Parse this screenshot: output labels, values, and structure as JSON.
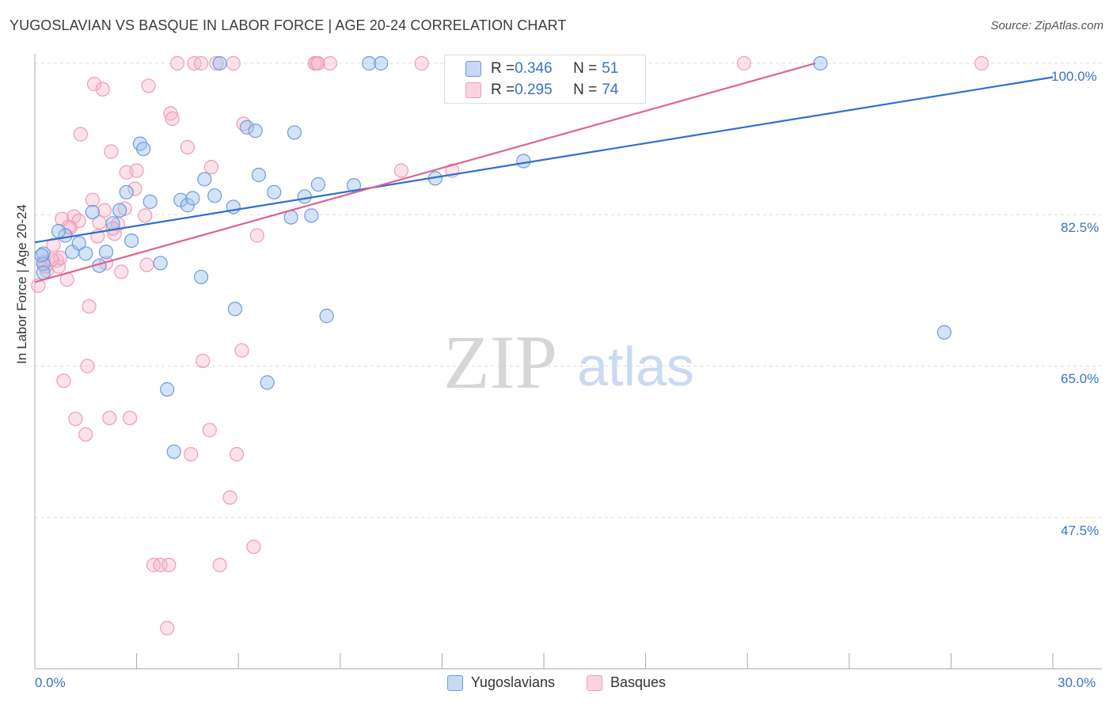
{
  "title": "YUGOSLAVIAN VS BASQUE IN LABOR FORCE | AGE 20-24 CORRELATION CHART",
  "source": "Source: ZipAtlas.com",
  "watermark": {
    "zip": "ZIP",
    "atlas": "atlas"
  },
  "stats": {
    "yugoslavians": {
      "r_label": "R = ",
      "r": "0.346",
      "n_label": "N = ",
      "n": "51",
      "color": "#6d9be0"
    },
    "basques": {
      "r_label": "R = ",
      "r": "0.295",
      "n_label": "N = ",
      "n": "74",
      "color": "#f09ab6"
    }
  },
  "chart_data": {
    "type": "scatter",
    "xlabel": "",
    "ylabel": "In Labor Force | Age 20-24",
    "xlim": [
      0,
      30
    ],
    "ylim": [
      30,
      100
    ],
    "x_tick_labels": [
      "0.0%",
      "30.0%"
    ],
    "y_ticks": [
      47.5,
      65.0,
      82.5,
      100.0
    ],
    "y_tick_labels": [
      "47.5%",
      "65.0%",
      "82.5%",
      "100.0%"
    ],
    "grid": true,
    "legend_placement": "bottom",
    "series": [
      {
        "name": "Yugoslavians",
        "color": "#6d9be0",
        "line_color": "#2f6fce",
        "trend": {
          "x0": 0.0,
          "y0": 79.3,
          "x1": 30.0,
          "y1": 98.4
        },
        "points": [
          [
            0.25,
            78.0
          ],
          [
            0.25,
            76.8
          ],
          [
            0.25,
            75.8
          ],
          [
            0.9,
            80.1
          ],
          [
            0.7,
            80.6
          ],
          [
            1.1,
            78.2
          ],
          [
            1.3,
            79.2
          ],
          [
            1.5,
            78.0
          ],
          [
            1.7,
            82.8
          ],
          [
            1.9,
            76.6
          ],
          [
            2.1,
            78.2
          ],
          [
            2.3,
            81.5
          ],
          [
            2.5,
            83.0
          ],
          [
            2.7,
            85.1
          ],
          [
            2.85,
            79.5
          ],
          [
            3.1,
            90.7
          ],
          [
            3.2,
            90.1
          ],
          [
            3.4,
            84.0
          ],
          [
            3.7,
            76.9
          ],
          [
            3.9,
            62.3
          ],
          [
            4.1,
            55.1
          ],
          [
            4.3,
            84.2
          ],
          [
            4.5,
            83.6
          ],
          [
            4.65,
            84.4
          ],
          [
            4.9,
            75.3
          ],
          [
            5.0,
            86.6
          ],
          [
            5.3,
            84.7
          ],
          [
            5.45,
            100.0
          ],
          [
            5.85,
            83.4
          ],
          [
            5.9,
            71.6
          ],
          [
            6.25,
            92.6
          ],
          [
            6.5,
            92.2
          ],
          [
            6.6,
            87.1
          ],
          [
            6.85,
            63.1
          ],
          [
            7.05,
            85.1
          ],
          [
            7.55,
            82.2
          ],
          [
            7.65,
            92.0
          ],
          [
            7.95,
            84.6
          ],
          [
            8.15,
            82.4
          ],
          [
            8.35,
            86.0
          ],
          [
            8.6,
            70.8
          ],
          [
            9.4,
            85.9
          ],
          [
            9.85,
            100.0
          ],
          [
            10.2,
            100.0
          ],
          [
            11.8,
            86.7
          ],
          [
            12.8,
            100.0
          ],
          [
            13.3,
            100.0
          ],
          [
            14.4,
            88.7
          ],
          [
            23.15,
            100.0
          ],
          [
            26.8,
            68.9
          ],
          [
            0.2,
            77.8
          ]
        ]
      },
      {
        "name": "Basques",
        "color": "#f09ab6",
        "line_color": "#e0628f",
        "trend": {
          "x0": 0.0,
          "y0": 74.7,
          "x1": 23.0,
          "y1": 100.0
        },
        "points": [
          [
            0.1,
            74.3
          ],
          [
            0.25,
            77.0
          ],
          [
            0.35,
            76.0
          ],
          [
            0.55,
            79.0
          ],
          [
            0.65,
            77.2
          ],
          [
            0.7,
            76.5
          ],
          [
            0.75,
            77.5
          ],
          [
            0.8,
            82.0
          ],
          [
            0.85,
            63.3
          ],
          [
            0.95,
            75.0
          ],
          [
            1.05,
            81.0
          ],
          [
            1.15,
            82.3
          ],
          [
            1.2,
            58.9
          ],
          [
            1.3,
            81.8
          ],
          [
            1.35,
            91.8
          ],
          [
            1.5,
            57.1
          ],
          [
            1.55,
            65.0
          ],
          [
            1.6,
            71.9
          ],
          [
            1.7,
            84.2
          ],
          [
            1.75,
            97.6
          ],
          [
            1.85,
            80.0
          ],
          [
            1.9,
            81.6
          ],
          [
            2.0,
            97.0
          ],
          [
            2.05,
            83.0
          ],
          [
            2.1,
            76.9
          ],
          [
            2.2,
            59.0
          ],
          [
            2.25,
            89.8
          ],
          [
            2.35,
            80.3
          ],
          [
            2.45,
            81.4
          ],
          [
            2.55,
            75.9
          ],
          [
            2.65,
            83.2
          ],
          [
            2.7,
            87.4
          ],
          [
            2.8,
            59.0
          ],
          [
            2.95,
            85.5
          ],
          [
            3.0,
            87.6
          ],
          [
            3.25,
            82.4
          ],
          [
            3.3,
            76.7
          ],
          [
            3.35,
            97.4
          ],
          [
            3.5,
            42.0
          ],
          [
            3.7,
            42.0
          ],
          [
            3.9,
            34.7
          ],
          [
            4.0,
            94.2
          ],
          [
            4.05,
            93.6
          ],
          [
            4.2,
            100.0
          ],
          [
            4.5,
            90.3
          ],
          [
            4.6,
            54.8
          ],
          [
            4.7,
            100.0
          ],
          [
            4.9,
            100.0
          ],
          [
            4.95,
            65.6
          ],
          [
            5.15,
            57.6
          ],
          [
            5.2,
            88.0
          ],
          [
            5.35,
            100.0
          ],
          [
            5.45,
            42.0
          ],
          [
            5.75,
            49.8
          ],
          [
            5.95,
            54.8
          ],
          [
            5.85,
            100.0
          ],
          [
            6.1,
            66.8
          ],
          [
            6.15,
            93.0
          ],
          [
            6.55,
            80.1
          ],
          [
            6.45,
            44.1
          ],
          [
            8.25,
            100.0
          ],
          [
            8.3,
            100.0
          ],
          [
            8.35,
            100.0
          ],
          [
            8.7,
            100.0
          ],
          [
            10.8,
            87.6
          ],
          [
            11.4,
            100.0
          ],
          [
            12.3,
            87.6
          ],
          [
            20.9,
            100.0
          ],
          [
            27.9,
            100.0
          ],
          [
            0.3,
            76.5
          ],
          [
            0.5,
            77.3
          ],
          [
            1.0,
            81.1
          ],
          [
            2.3,
            80.9
          ],
          [
            3.95,
            42.0
          ]
        ]
      }
    ]
  }
}
